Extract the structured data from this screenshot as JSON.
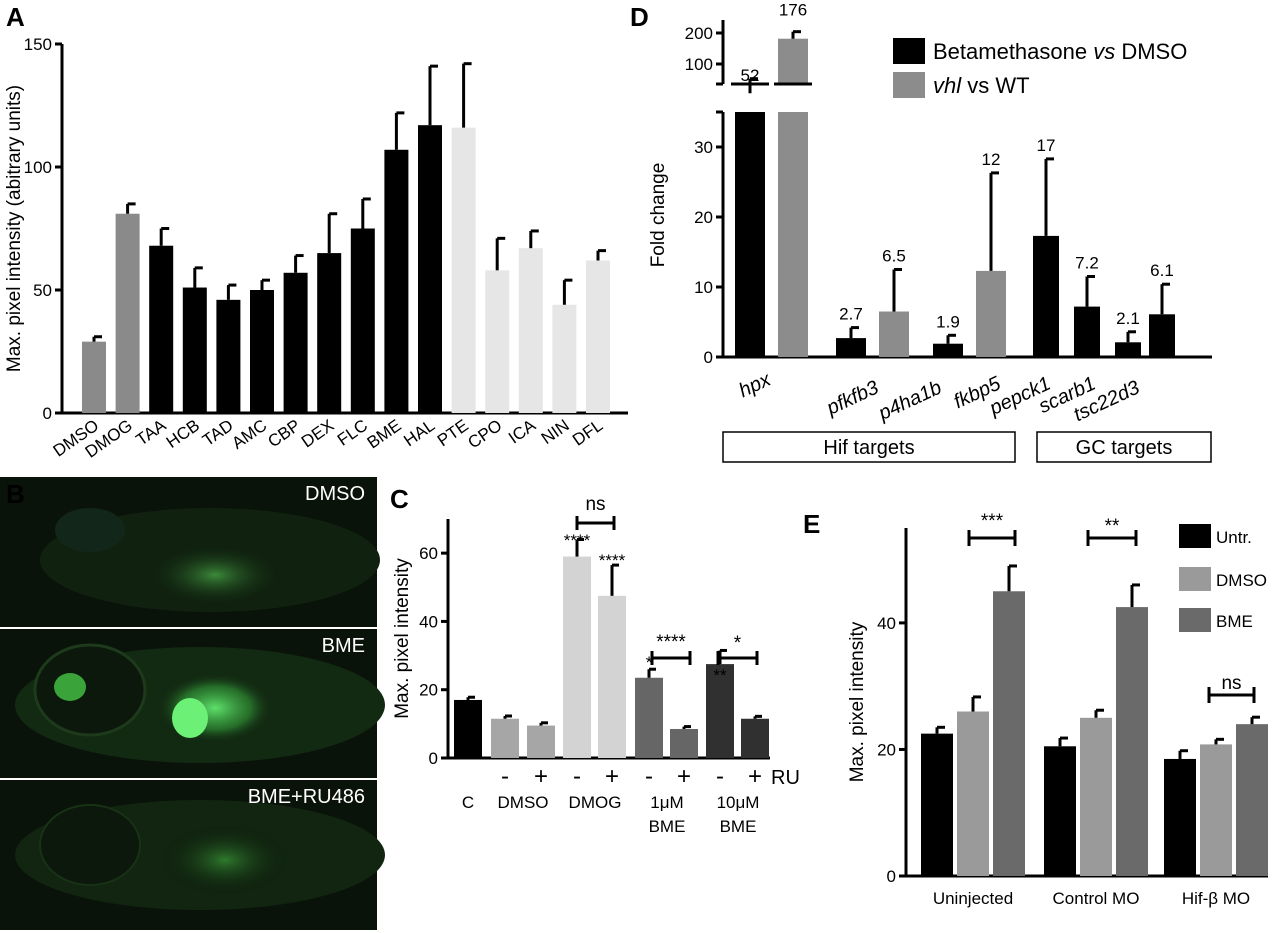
{
  "panels": {
    "A": {
      "label": "A"
    },
    "B": {
      "label": "B",
      "images": [
        {
          "label": "DMSO"
        },
        {
          "label": "BME"
        },
        {
          "label": "BME+RU486"
        }
      ]
    },
    "C": {
      "label": "C",
      "ru_label": "RU",
      "minus": "-",
      "plus": "+",
      "groups": [
        "C",
        "DMSO",
        "DMOG",
        "1μM",
        "BME",
        "10μM",
        "BME"
      ]
    },
    "D": {
      "label": "D",
      "box1": "Hif targets",
      "box2": "GC targets"
    },
    "E": {
      "label": "E"
    }
  },
  "chart_data": [
    {
      "panel": "A",
      "type": "bar",
      "ylabel": "Max. pixel intensity (abitrary units)",
      "ylim": [
        0,
        150
      ],
      "yticks": [
        0,
        50,
        100,
        150
      ],
      "categories": [
        "DMSO",
        "DMOG",
        "TAA",
        "HCB",
        "TAD",
        "AMC",
        "CBP",
        "DEX",
        "FLC",
        "BME",
        "HAL",
        "PTE",
        "CPO",
        "ICA",
        "NIN",
        "DFL"
      ],
      "values": [
        29,
        81,
        68,
        51,
        46,
        50,
        57,
        65,
        75,
        107,
        117,
        116,
        58,
        67,
        44,
        62
      ],
      "errors": [
        2,
        4,
        7,
        8,
        6,
        4,
        7,
        16,
        12,
        15,
        24,
        26,
        13,
        7,
        10,
        4
      ],
      "colors": [
        "#8a8a8a",
        "#8a8a8a",
        "#000000",
        "#000000",
        "#000000",
        "#000000",
        "#000000",
        "#000000",
        "#000000",
        "#000000",
        "#000000",
        "#e6e6e6",
        "#e6e6e6",
        "#e6e6e6",
        "#e6e6e6",
        "#e6e6e6"
      ]
    },
    {
      "panel": "C",
      "type": "bar",
      "ylabel": "Max. pixel intensity",
      "ylim": [
        0,
        70
      ],
      "yticks": [
        0,
        20,
        40,
        60
      ],
      "bars": [
        {
          "value": 17,
          "error": 0.8,
          "color": "#000000",
          "ru": ""
        },
        {
          "value": 11.5,
          "error": 0.8,
          "color": "#a6a6a6",
          "ru": "-"
        },
        {
          "value": 9.5,
          "error": 0.8,
          "color": "#a6a6a6",
          "ru": "+"
        },
        {
          "value": 59,
          "error": 5,
          "color": "#d3d3d3",
          "ru": "-"
        },
        {
          "value": 47.5,
          "error": 9,
          "color": "#d3d3d3",
          "ru": "+"
        },
        {
          "value": 23.5,
          "error": 2.5,
          "color": "#666666",
          "ru": "-"
        },
        {
          "value": 8.5,
          "error": 0.7,
          "color": "#666666",
          "ru": "+"
        },
        {
          "value": 27.5,
          "error": 4,
          "color": "#303030",
          "ru": "-"
        },
        {
          "value": 11.5,
          "error": 0.7,
          "color": "#303030",
          "ru": "+"
        }
      ],
      "annotations": [
        "****",
        "****",
        "*",
        "**"
      ],
      "brackets": [
        "ns",
        "****",
        "*"
      ]
    },
    {
      "panel": "D",
      "type": "bar",
      "ylabel": "Fold change",
      "ylim_lower": [
        0,
        35
      ],
      "yticks_lower": [
        0,
        10,
        20,
        30
      ],
      "yticks_upper": [
        100,
        200
      ],
      "legend": [
        "Betamethasone vs DMSO",
        "vhl vs WT"
      ],
      "legend_parts": [
        {
          "a": "Betamethasone ",
          "b": "vs",
          "c": " DMSO"
        },
        {
          "a": "",
          "b": "vhl",
          "c": " vs WT"
        }
      ],
      "categories": [
        "hpx",
        "pfkfb3",
        "p4ha1b",
        "fkbp5",
        "pepck1",
        "scarb1",
        "tsc22d3"
      ],
      "bars": [
        {
          "value": 52,
          "error": 20,
          "series": 0,
          "label": "52",
          "broken": true
        },
        {
          "value": 176,
          "error": 30,
          "series": 1,
          "label": "176",
          "broken": true
        },
        {
          "value": 2.7,
          "error": 1.5,
          "series": 0,
          "label": "2.7"
        },
        {
          "value": 6.5,
          "error": 6,
          "series": 1,
          "label": "6.5"
        },
        {
          "value": 1.9,
          "error": 1.2,
          "series": 0,
          "label": "1.9"
        },
        {
          "value": 12.3,
          "error": 14,
          "series": 1,
          "label": "12"
        },
        {
          "value": 17.3,
          "error": 11,
          "series": 0,
          "label": "17"
        },
        {
          "value": 7.2,
          "error": 4.3,
          "series": 0,
          "label": "7.2"
        },
        {
          "value": 2.1,
          "error": 1.5,
          "series": 0,
          "label": "2.1"
        },
        {
          "value": 6.1,
          "error": 4.3,
          "series": 0,
          "label": "6.1"
        }
      ],
      "colors": [
        "#000000",
        "#8c8c8c"
      ]
    },
    {
      "panel": "E",
      "type": "bar",
      "ylabel": "Max. pixel intensity",
      "ylim": [
        0,
        55
      ],
      "yticks": [
        0,
        20,
        40
      ],
      "categories": [
        "Uninjected",
        "Control MO",
        "Hif-β MO"
      ],
      "series": [
        {
          "name": "Untr.",
          "values": [
            22.5,
            20.5,
            18.5
          ],
          "errors": [
            1,
            1.3,
            1.3
          ],
          "color": "#000000"
        },
        {
          "name": "DMSO",
          "values": [
            26,
            25,
            20.8
          ],
          "errors": [
            2.3,
            1.2,
            0.8
          ],
          "color": "#9a9a9a"
        },
        {
          "name": "BME",
          "values": [
            45,
            42.5,
            24
          ],
          "errors": [
            4,
            3.5,
            1.1
          ],
          "color": "#6a6a6a"
        }
      ],
      "brackets": [
        "***",
        "**",
        "ns"
      ]
    }
  ]
}
